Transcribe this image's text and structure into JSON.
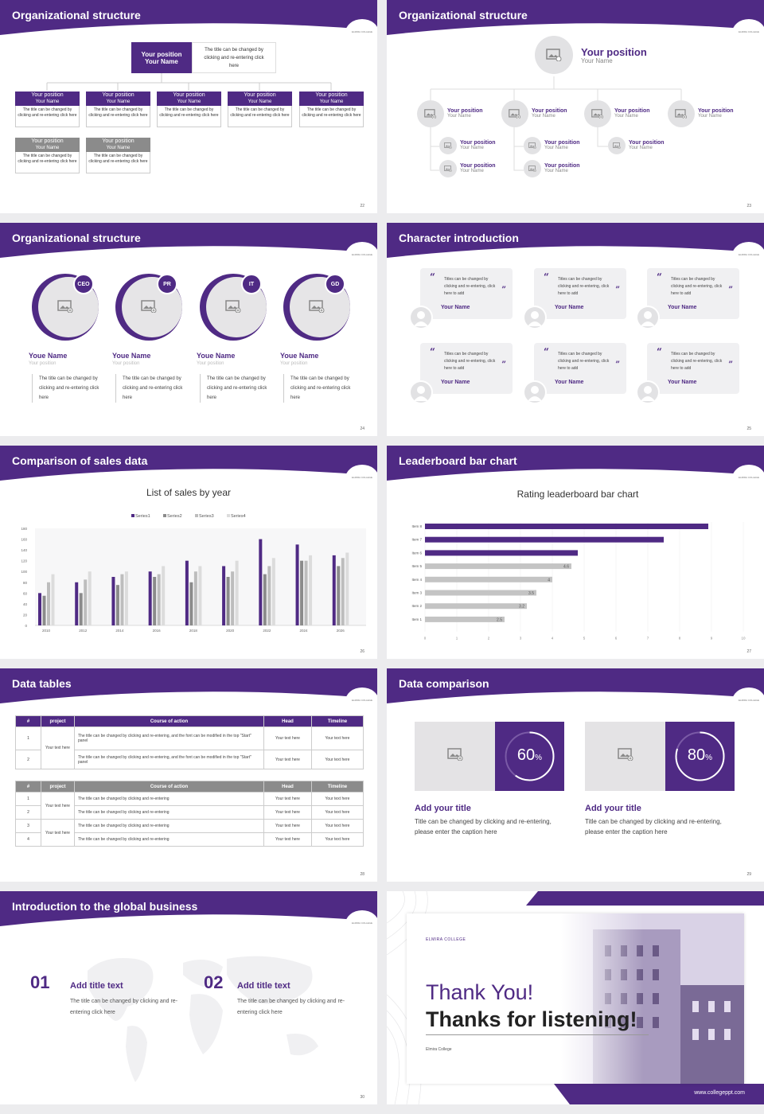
{
  "colors": {
    "primary": "#4f2a84",
    "gray": "#8b8b8b",
    "light": "#c8c8c8"
  },
  "s22": {
    "title": "Organizational structure",
    "page": "22",
    "top": {
      "pos": "Your position",
      "name": "Your Name",
      "desc": "The title can be changed by clicking and re-entering click here"
    },
    "boxes": [
      {
        "pos": "Your position",
        "name": "Your Name",
        "desc": "The title can be changed by clicking and re-entering click here"
      },
      {
        "pos": "Your position",
        "name": "Your Name",
        "desc": "The title can be changed by clicking and re-entering click here"
      },
      {
        "pos": "Your position",
        "name": "Your Name",
        "desc": "The title can be changed by clicking and re-entering click here"
      },
      {
        "pos": "Your position",
        "name": "Your Name",
        "desc": "The title can be changed by clicking and re-entering click here"
      },
      {
        "pos": "Your position",
        "name": "Your Name",
        "desc": "The title can be changed by clicking and re-entering click here"
      },
      {
        "pos": "Your position",
        "name": "Your Name",
        "desc": "The title can be changed by clicking and re-entering click here"
      },
      {
        "pos": "Your position",
        "name": "Your Name",
        "desc": "The title can be changed by clicking and re-entering click here"
      }
    ]
  },
  "s23": {
    "title": "Organizational structure",
    "page": "23",
    "top": {
      "pos": "Your position",
      "name": "Your Name"
    },
    "nodes": [
      {
        "pos": "Your position",
        "name": "Your Name"
      },
      {
        "pos": "Your position",
        "name": "Your Name"
      },
      {
        "pos": "Your position",
        "name": "Your Name"
      },
      {
        "pos": "Your position",
        "name": "Your Name"
      },
      {
        "pos": "Your position",
        "name": "Your Name"
      },
      {
        "pos": "Your position",
        "name": "Your Name"
      },
      {
        "pos": "Your position",
        "name": "Your Name"
      },
      {
        "pos": "Your position",
        "name": "Your Name"
      },
      {
        "pos": "Your position",
        "name": "Your Name"
      }
    ]
  },
  "s24": {
    "title": "Organizational structure",
    "page": "24",
    "people": [
      {
        "badge": "CEO",
        "name": "Youe Name",
        "pos": "Your position",
        "desc": "The title can be changed by clicking and re-entering click here"
      },
      {
        "badge": "PR",
        "name": "Youe Name",
        "pos": "Your position",
        "desc": "The title can be changed by clicking and re-entering click here"
      },
      {
        "badge": "IT",
        "name": "Youe Name",
        "pos": "Your position",
        "desc": "The title can be changed by clicking and re-entering click here"
      },
      {
        "badge": "GD",
        "name": "Youe Name",
        "pos": "Your position",
        "desc": "The title can be changed by clicking and re-entering click here"
      }
    ]
  },
  "s25": {
    "title": "Character introduction",
    "page": "25",
    "cards": [
      {
        "text": "Titles can be changed by clicking and re-entering, click here to add",
        "name": "Your Name"
      },
      {
        "text": "Titles can be changed by clicking and re-entering, click here to add",
        "name": "Your Name"
      },
      {
        "text": "Titles can be changed by clicking and re-entering, click here to add",
        "name": "Your Name"
      },
      {
        "text": "Titles can be changed by clicking and re-entering, click here to add",
        "name": "Your Name"
      },
      {
        "text": "Titles can be changed by clicking and re-entering, click here to add",
        "name": "Your Name"
      },
      {
        "text": "Titles can be changed by clicking and re-entering, click here to add",
        "name": "Your Name"
      }
    ]
  },
  "s26": {
    "title": "Comparison of sales data",
    "page": "26"
  },
  "s27": {
    "title": "Leaderboard bar chart",
    "page": "27"
  },
  "chart_data": [
    {
      "type": "bar",
      "title": "List of sales by year",
      "categories": [
        "2010",
        "2012",
        "2014",
        "2016",
        "2018",
        "2020",
        "2022",
        "2024",
        "2026"
      ],
      "series": [
        {
          "name": "Series1",
          "color": "#4f2a84",
          "values": [
            60,
            80,
            90,
            100,
            120,
            110,
            160,
            150,
            130
          ]
        },
        {
          "name": "Series2",
          "color": "#8b8b8b",
          "values": [
            55,
            60,
            75,
            90,
            80,
            90,
            95,
            120,
            110
          ]
        },
        {
          "name": "Series3",
          "color": "#bdbdbd",
          "values": [
            80,
            85,
            95,
            95,
            100,
            100,
            110,
            120,
            125
          ]
        },
        {
          "name": "Series4",
          "color": "#dcdcdc",
          "values": [
            95,
            100,
            100,
            110,
            110,
            120,
            125,
            130,
            135
          ]
        }
      ],
      "ylim": [
        0,
        180
      ],
      "yticks": [
        "180",
        "160",
        "140",
        "120",
        "100",
        "80",
        "60",
        "40",
        "20",
        "0"
      ],
      "legend": "top",
      "grid": false
    },
    {
      "type": "bar",
      "orientation": "horizontal",
      "title": "Rating leaderboard bar chart",
      "categories": [
        "Item 8",
        "Item 7",
        "Item 6",
        "Item 5",
        "Item 4",
        "Item 3",
        "Item 2",
        "Item 1"
      ],
      "values": [
        8.9,
        7.5,
        4.8,
        4.6,
        4,
        3.5,
        3.2,
        2.5
      ],
      "labels": [
        "",
        "",
        "",
        "4.6",
        "4",
        "3.5",
        "3.2",
        "2.5"
      ],
      "xlim": [
        0,
        10
      ],
      "xticks": [
        "0",
        "1",
        "2",
        "3",
        "4",
        "5",
        "6",
        "7",
        "8",
        "9",
        "10"
      ],
      "grid": true
    }
  ],
  "s28": {
    "title": "Data tables",
    "page": "28",
    "t1": {
      "headers": [
        "#",
        "project",
        "Course of action",
        "Head",
        "Timeline"
      ],
      "project": "Your text here",
      "rows": [
        {
          "n": "1",
          "c": "The title can be changed by clicking and re-entering, and the font can be modified in the top \"Start\" panel",
          "h": "Your text here",
          "t": "Your text here"
        },
        {
          "n": "2",
          "c": "The title can be changed by clicking and re-entering, and the font can be modified in the top \"Start\" panel",
          "h": "Your text here",
          "t": "Your text here"
        }
      ]
    },
    "t2": {
      "headers": [
        "#",
        "project",
        "Course of action",
        "Head",
        "Timeline"
      ],
      "p1": "Your text here",
      "p2": "Your text here",
      "rows": [
        {
          "n": "1",
          "c": "The title can be changed by clicking and re-entering",
          "h": "Your text here",
          "t": "Your text here"
        },
        {
          "n": "2",
          "c": "The title can be changed by clicking and re-entering",
          "h": "Your text here",
          "t": "Your text here"
        },
        {
          "n": "3",
          "c": "The title can be changed by clicking and re-entering",
          "h": "Your text here",
          "t": "Your text here"
        },
        {
          "n": "4",
          "c": "The title can be changed by clicking and re-entering",
          "h": "Your text here",
          "t": "Your text here"
        }
      ]
    }
  },
  "s29": {
    "title": "Data comparison",
    "page": "29",
    "items": [
      {
        "pct": "60",
        "frac": 0.6,
        "title": "Add your title",
        "desc": "Title can be changed by clicking and re-entering, please enter the caption here"
      },
      {
        "pct": "80",
        "frac": 0.8,
        "title": "Add your title",
        "desc": "Title can be changed by clicking and re-entering, please enter the caption here"
      }
    ]
  },
  "s30": {
    "title": "Introduction to the global business",
    "page": "30",
    "items": [
      {
        "num": "01",
        "title": "Add title text",
        "desc": "The title can be changed by clicking and re-entering click here"
      },
      {
        "num": "02",
        "title": "Add title text",
        "desc": "The title can be changed by clicking and re-entering click here"
      }
    ]
  },
  "s31": {
    "college": "ELMIRA COLLEGE",
    "thanks": "Thank You!",
    "listening": "Thanks for listening!",
    "sub": "Elmira College",
    "url": "www.collegeppt.com"
  },
  "logo_text": "ELMIRA COLLEGE"
}
